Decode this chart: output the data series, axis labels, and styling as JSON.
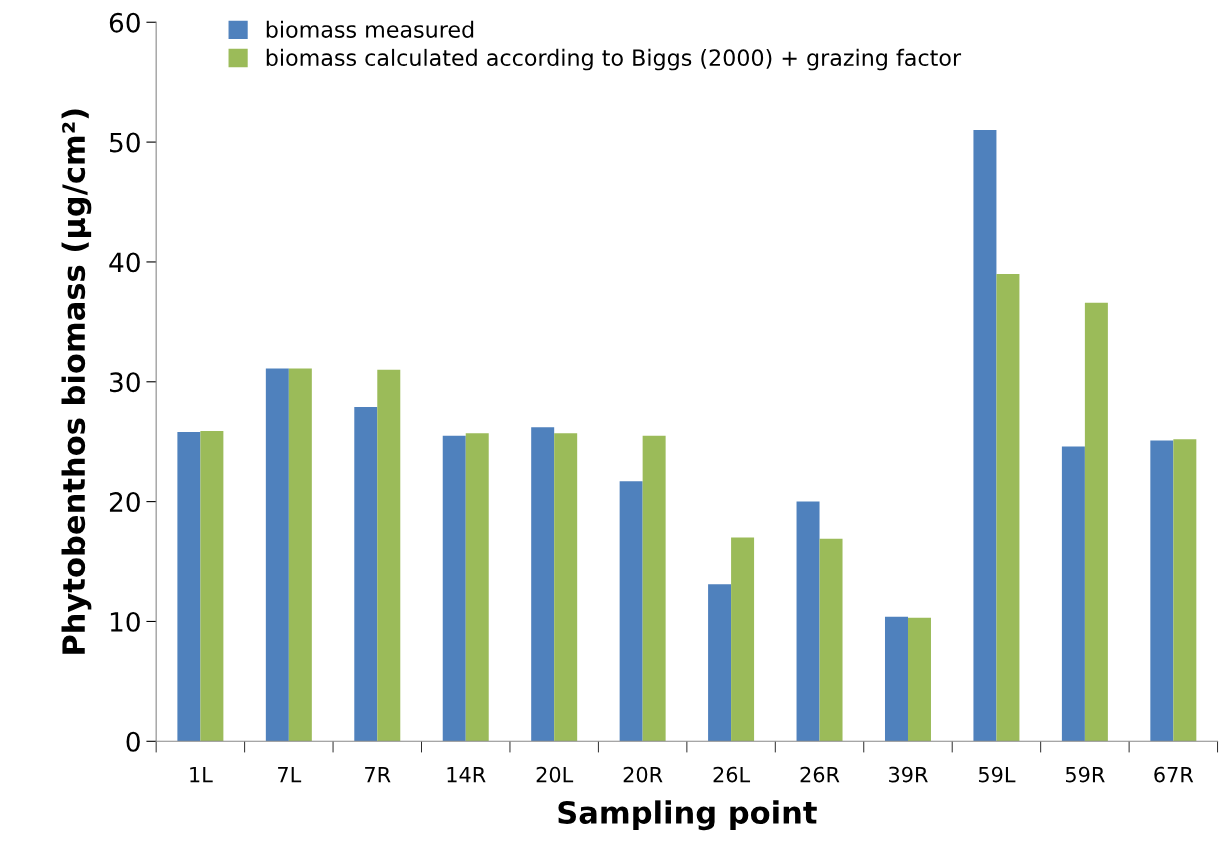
{
  "chart_data": {
    "type": "bar",
    "xlabel": "Sampling point",
    "ylabel": "Phytobenthos biomass (µg/cm²)",
    "categories": [
      "1L",
      "7L",
      "7R",
      "14R",
      "20L",
      "20R",
      "26L",
      "26R",
      "39R",
      "59L",
      "59R",
      "67R"
    ],
    "series": [
      {
        "name": "biomass measured",
        "color": "#4f81bd",
        "values": [
          25.8,
          31.1,
          27.9,
          25.5,
          26.2,
          21.7,
          13.1,
          20.0,
          10.4,
          51.0,
          24.6,
          25.1
        ]
      },
      {
        "name": "biomass calculated according to Biggs (2000) + grazing factor",
        "color": "#9bbb59",
        "values": [
          25.9,
          31.1,
          31.0,
          25.7,
          25.7,
          25.5,
          17.0,
          16.9,
          10.3,
          39.0,
          36.6,
          25.2
        ]
      }
    ],
    "ylim": [
      0,
      60
    ],
    "yticks": [
      0,
      10,
      20,
      30,
      40,
      50,
      60
    ],
    "grid": false,
    "legend": "top left"
  }
}
